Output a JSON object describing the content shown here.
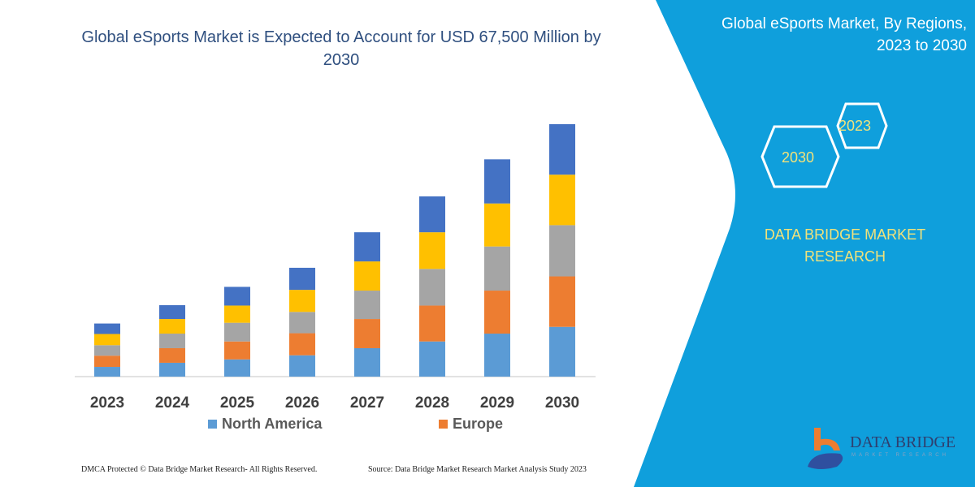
{
  "title": "Global eSports Market is Expected to Account for USD 67,500 Million by 2030",
  "side_panel": {
    "title_line1": "Global eSports Market, By Regions,",
    "title_line2": "2023 to 2030",
    "hex_a": "2023",
    "hex_b": "2030",
    "brand_line1": "DATA BRIDGE MARKET",
    "brand_line2": "RESEARCH",
    "logo_text": "DATA BRIDGE",
    "logo_sub": "MARKET RESEARCH",
    "color": "#0f9fdc"
  },
  "footer": {
    "dmca": "DMCA Protected © Data Bridge Market Research-  All Rights Reserved.",
    "source": "Source: Data Bridge Market Research  Market Analysis Study 2023"
  },
  "chart_data": {
    "type": "bar",
    "stacked": true,
    "unit": "USD Million",
    "categories": [
      "2023",
      "2024",
      "2025",
      "2026",
      "2027",
      "2028",
      "2029",
      "2030"
    ],
    "series": [
      {
        "name": "North America",
        "color": "#5b9bd5",
        "values": [
          2600,
          3700,
          4600,
          5700,
          7600,
          9400,
          11500,
          13300
        ]
      },
      {
        "name": "Europe",
        "color": "#ed7d31",
        "values": [
          3000,
          3900,
          4800,
          5900,
          7800,
          9600,
          11500,
          13500
        ]
      },
      {
        "color": "#a5a5a5",
        "values": [
          2800,
          3900,
          5000,
          5700,
          7600,
          9800,
          11800,
          13700
        ]
      },
      {
        "color": "#ffc000",
        "values": [
          3000,
          3900,
          4600,
          5900,
          7800,
          9800,
          11500,
          13500
        ]
      },
      {
        "color": "#4472c4",
        "values": [
          2800,
          3700,
          5000,
          5900,
          7800,
          9600,
          11800,
          13500
        ]
      }
    ],
    "ylim": [
      0,
      67500
    ],
    "grid": false,
    "y_axis_shown": false,
    "legend_placement": "bottom"
  }
}
